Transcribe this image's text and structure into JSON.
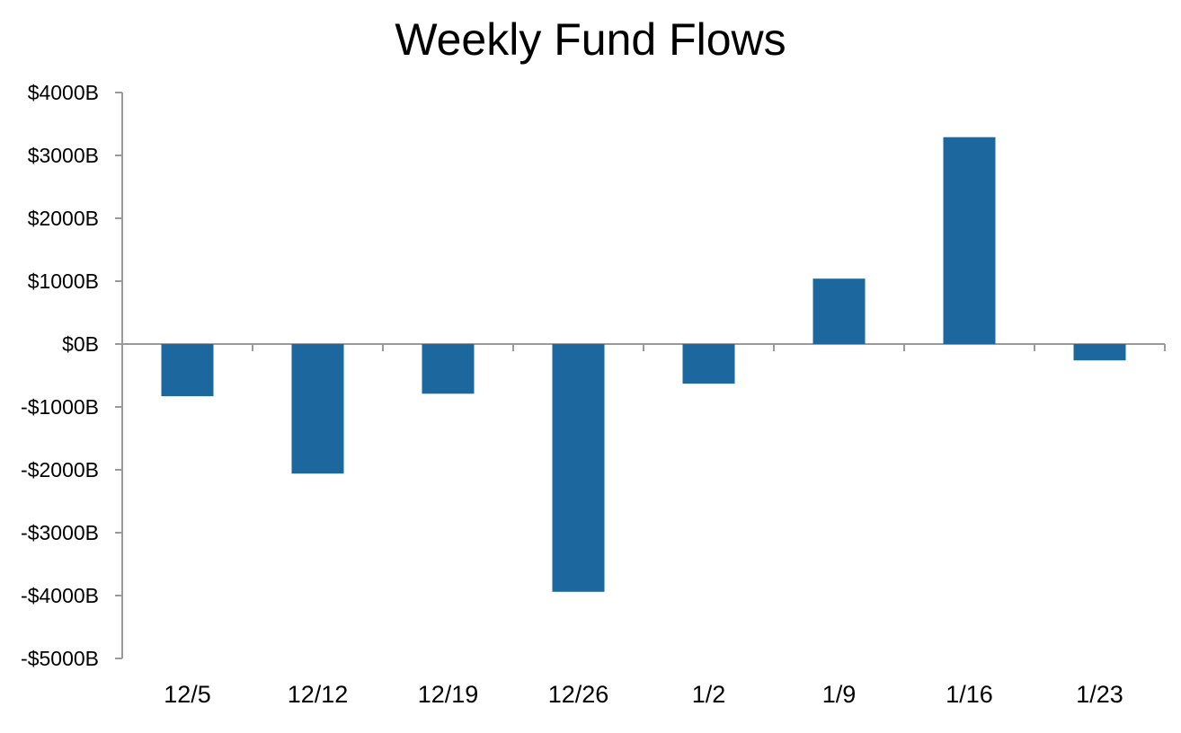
{
  "chart_data": {
    "type": "bar",
    "title": "Weekly Fund Flows",
    "xlabel": "",
    "ylabel": "",
    "categories": [
      "12/5",
      "12/12",
      "12/19",
      "12/26",
      "1/2",
      "1/9",
      "1/16",
      "1/23"
    ],
    "values": [
      -830,
      -2060,
      -790,
      -3940,
      -630,
      1040,
      3290,
      -260
    ],
    "ylim": [
      -5000,
      4000
    ],
    "yticks": [
      4000,
      3000,
      2000,
      1000,
      0,
      -1000,
      -2000,
      -3000,
      -4000,
      -5000
    ],
    "ytick_labels": [
      "$4000B",
      "$3000B",
      "$2000B",
      "$1000B",
      "$0B",
      "-$1000B",
      "-$2000B",
      "-$3000B",
      "-$4000B",
      "-$5000B"
    ],
    "grid": false,
    "legend": "none",
    "colors": {
      "bar": "#1b679e",
      "axis": "#9a9a9a"
    }
  }
}
